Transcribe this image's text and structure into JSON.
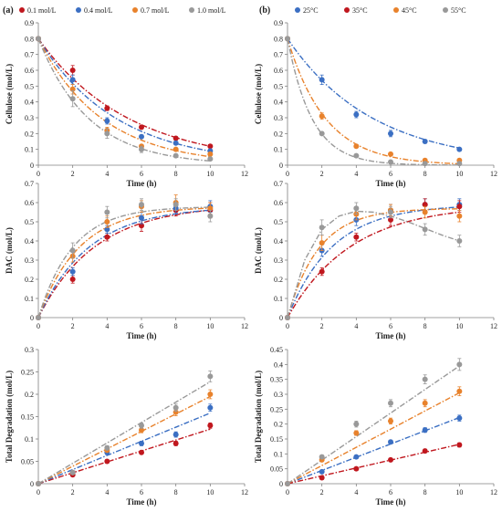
{
  "panel_labels": [
    "(a)",
    "(b)"
  ],
  "chart_data": [
    {
      "id": "a-cellulose",
      "type": "scatter",
      "xlabel": "Time (h)",
      "ylabel": "Cellulose (mol/L)",
      "xlim": [
        0,
        12
      ],
      "ylim": [
        0,
        0.9
      ],
      "xticks": [
        0,
        2,
        4,
        6,
        8,
        10,
        12
      ],
      "yticks": [
        0,
        0.1,
        0.2,
        0.3,
        0.4,
        0.5,
        0.6,
        0.7,
        0.8,
        0.9
      ],
      "grid": false,
      "legend": [
        "0.1 mol/L",
        "0.4 mol/L",
        "0.7 mol/L",
        "1.0 mol/L"
      ],
      "legend_position": "top",
      "series": [
        {
          "name": "0.1 mol/L",
          "color": "#c0171e",
          "x": [
            0,
            2,
            4,
            6,
            8,
            10
          ],
          "y": [
            0.8,
            0.6,
            0.36,
            0.24,
            0.17,
            0.12
          ],
          "err": [
            0,
            0.03,
            0.015,
            0.01,
            0.01,
            0.01
          ],
          "fit": {
            "y0": 0.8,
            "k": 0.19
          }
        },
        {
          "name": "0.4 mol/L",
          "color": "#3b6fc3",
          "x": [
            0,
            2,
            4,
            6,
            8,
            10
          ],
          "y": [
            0.8,
            0.54,
            0.28,
            0.18,
            0.14,
            0.09
          ],
          "err": [
            0,
            0.03,
            0.02,
            0.01,
            0.01,
            0.01
          ],
          "fit": {
            "y0": 0.8,
            "k": 0.22
          }
        },
        {
          "name": "0.7 mol/L",
          "color": "#e8822c",
          "x": [
            0,
            2,
            4,
            6,
            8,
            10
          ],
          "y": [
            0.8,
            0.48,
            0.22,
            0.12,
            0.1,
            0.07
          ],
          "err": [
            0,
            0.03,
            0.02,
            0.01,
            0.01,
            0.01
          ],
          "fit": {
            "y0": 0.8,
            "k": 0.27
          }
        },
        {
          "name": "1.0 mol/L",
          "color": "#999999",
          "x": [
            0,
            2,
            4,
            6,
            8,
            10
          ],
          "y": [
            0.8,
            0.42,
            0.2,
            0.1,
            0.06,
            0.04
          ],
          "err": [
            0,
            0.05,
            0.03,
            0.02,
            0.01,
            0.01
          ],
          "fit": {
            "y0": 0.8,
            "k": 0.34
          }
        }
      ]
    },
    {
      "id": "b-cellulose",
      "type": "scatter",
      "xlabel": "Time (h)",
      "ylabel": "Cellulose (mol/L)",
      "xlim": [
        0,
        12
      ],
      "ylim": [
        0,
        0.9
      ],
      "xticks": [
        0,
        2,
        4,
        6,
        8,
        10,
        12
      ],
      "yticks": [
        0,
        0.1,
        0.2,
        0.3,
        0.4,
        0.5,
        0.6,
        0.7,
        0.8,
        0.9
      ],
      "grid": false,
      "legend": [
        "25°C",
        "35°C",
        "45°C",
        "55°C"
      ],
      "legend_position": "top",
      "series": [
        {
          "name": "25°C",
          "color": "#3b6fc3",
          "x": [
            0,
            2,
            4,
            6,
            8,
            10
          ],
          "y": [
            0.8,
            0.54,
            0.32,
            0.2,
            0.15,
            0.1
          ],
          "err": [
            0,
            0.03,
            0.02,
            0.02,
            0.01,
            0.01
          ],
          "fit": {
            "y0": 0.8,
            "k": 0.2
          }
        },
        {
          "name": "35°C",
          "color": "#c0171e",
          "x": [],
          "y": [],
          "err": [],
          "fit": null
        },
        {
          "name": "45°C",
          "color": "#e8822c",
          "x": [
            0,
            2,
            4,
            6,
            8,
            10
          ],
          "y": [
            0.8,
            0.31,
            0.12,
            0.07,
            0.03,
            0.03
          ],
          "err": [
            0,
            0.02,
            0.01,
            0.01,
            0.01,
            0.01
          ],
          "fit": {
            "y0": 0.8,
            "k": 0.45
          }
        },
        {
          "name": "55°C",
          "color": "#999999",
          "x": [
            0,
            2,
            4,
            6,
            8,
            10
          ],
          "y": [
            0.8,
            0.2,
            0.06,
            0.02,
            0.01,
            0.01
          ],
          "err": [
            0,
            0.01,
            0.01,
            0.01,
            0.01,
            0.01
          ],
          "fit": {
            "y0": 0.8,
            "k": 0.7
          }
        }
      ]
    },
    {
      "id": "a-dac",
      "type": "scatter",
      "xlabel": "Time (h)",
      "ylabel": "DAC (mol/L)",
      "xlim": [
        0,
        12
      ],
      "ylim": [
        0,
        0.7
      ],
      "xticks": [
        0,
        2,
        4,
        6,
        8,
        10,
        12
      ],
      "yticks": [
        0,
        0.1,
        0.2,
        0.3,
        0.4,
        0.5,
        0.6,
        0.7
      ],
      "grid": false,
      "series": [
        {
          "name": "0.1 mol/L",
          "color": "#c0171e",
          "x": [
            0,
            2,
            4,
            6,
            8,
            10
          ],
          "y": [
            0,
            0.2,
            0.42,
            0.48,
            0.56,
            0.56
          ],
          "err": [
            0,
            0.02,
            0.02,
            0.03,
            0.03,
            0.04
          ],
          "fit": {
            "ymax": 0.59,
            "k": 0.3
          }
        },
        {
          "name": "0.4 mol/L",
          "color": "#3b6fc3",
          "x": [
            0,
            2,
            4,
            6,
            8,
            10
          ],
          "y": [
            0,
            0.24,
            0.46,
            0.52,
            0.57,
            0.58
          ],
          "err": [
            0,
            0.02,
            0.02,
            0.03,
            0.03,
            0.03
          ],
          "fit": {
            "ymax": 0.58,
            "k": 0.34
          }
        },
        {
          "name": "0.7 mol/L",
          "color": "#e8822c",
          "x": [
            0,
            2,
            4,
            6,
            8,
            10
          ],
          "y": [
            0,
            0.32,
            0.5,
            0.58,
            0.6,
            0.57
          ],
          "err": [
            0,
            0.03,
            0.03,
            0.03,
            0.04,
            0.03
          ],
          "fit": {
            "ymax": 0.58,
            "k": 0.42
          }
        },
        {
          "name": "1.0 mol/L",
          "color": "#999999",
          "x": [
            0,
            2,
            4,
            6,
            8,
            10
          ],
          "y": [
            0,
            0.35,
            0.55,
            0.59,
            0.59,
            0.53
          ],
          "err": [
            0,
            0.04,
            0.03,
            0.03,
            0.03,
            0.03
          ],
          "fit": {
            "ymax": 0.58,
            "k": 0.5
          }
        }
      ]
    },
    {
      "id": "b-dac",
      "type": "scatter",
      "xlabel": "Time (h)",
      "ylabel": "DAC (mol/L)",
      "xlim": [
        0,
        12
      ],
      "ylim": [
        0,
        0.7
      ],
      "xticks": [
        0,
        2,
        4,
        6,
        8,
        10,
        12
      ],
      "yticks": [
        0,
        0.1,
        0.2,
        0.3,
        0.4,
        0.5,
        0.6,
        0.7
      ],
      "grid": false,
      "series": [
        {
          "name": "25°C",
          "color": "#3b6fc3",
          "x": [
            0,
            2,
            4,
            6,
            8,
            10
          ],
          "y": [
            0,
            0.35,
            0.51,
            0.56,
            0.59,
            0.59
          ],
          "err": [
            0,
            0.03,
            0.03,
            0.03,
            0.03,
            0.03
          ],
          "fit": {
            "ymax": 0.59,
            "k": 0.38
          }
        },
        {
          "name": "35°C",
          "color": "#c0171e",
          "x": [
            0,
            2,
            4,
            6,
            8,
            10
          ],
          "y": [
            0,
            0.24,
            0.42,
            0.51,
            0.59,
            0.58
          ],
          "err": [
            0,
            0.02,
            0.02,
            0.03,
            0.03,
            0.03
          ],
          "fit": {
            "ymax": 0.59,
            "k": 0.27
          }
        },
        {
          "name": "45°C",
          "color": "#e8822c",
          "x": [
            0,
            2,
            4,
            6,
            8,
            10
          ],
          "y": [
            0,
            0.39,
            0.54,
            0.56,
            0.55,
            0.53
          ],
          "err": [
            0,
            0.04,
            0.03,
            0.03,
            0.03,
            0.03
          ],
          "fit": {
            "ymax": 0.57,
            "k": 0.55
          }
        },
        {
          "name": "55°C",
          "color": "#999999",
          "x": [
            0,
            2,
            4,
            6,
            8,
            10
          ],
          "y": [
            0,
            0.47,
            0.57,
            0.55,
            0.46,
            0.4
          ],
          "err": [
            0,
            0.04,
            0.03,
            0.03,
            0.03,
            0.03
          ],
          "fit": {
            "curve": [
              [
                0,
                0
              ],
              [
                1,
                0.3
              ],
              [
                2,
                0.46
              ],
              [
                3,
                0.53
              ],
              [
                4,
                0.555
              ],
              [
                5,
                0.55
              ],
              [
                6,
                0.53
              ],
              [
                7,
                0.5
              ],
              [
                8,
                0.465
              ],
              [
                9,
                0.43
              ],
              [
                10,
                0.4
              ]
            ]
          }
        }
      ]
    },
    {
      "id": "a-degradation",
      "type": "scatter",
      "xlabel": "Time (h)",
      "ylabel": "Total Degradation (mol/L)",
      "xlim": [
        0,
        12
      ],
      "ylim": [
        0,
        0.3
      ],
      "xticks": [
        0,
        2,
        4,
        6,
        8,
        10,
        12
      ],
      "yticks": [
        0,
        0.05,
        0.1,
        0.15,
        0.2,
        0.25,
        0.3
      ],
      "grid": false,
      "series": [
        {
          "name": "0.1 mol/L",
          "color": "#c0171e",
          "x": [
            0,
            2,
            4,
            6,
            8,
            10
          ],
          "y": [
            0,
            0.02,
            0.05,
            0.07,
            0.09,
            0.13
          ],
          "err": [
            0,
            0.003,
            0.004,
            0.004,
            0.005,
            0.006
          ],
          "fit": {
            "slope": 0.0122
          }
        },
        {
          "name": "0.4 mol/L",
          "color": "#3b6fc3",
          "x": [
            0,
            2,
            4,
            6,
            8,
            10
          ],
          "y": [
            0,
            0.025,
            0.07,
            0.09,
            0.11,
            0.17
          ],
          "err": [
            0,
            0.003,
            0.005,
            0.005,
            0.006,
            0.008
          ],
          "fit": {
            "slope": 0.0158
          }
        },
        {
          "name": "0.7 mol/L",
          "color": "#e8822c",
          "x": [
            0,
            2,
            4,
            6,
            8,
            10
          ],
          "y": [
            0,
            0.025,
            0.075,
            0.12,
            0.16,
            0.2
          ],
          "err": [
            0,
            0.003,
            0.005,
            0.006,
            0.008,
            0.01
          ],
          "fit": {
            "slope": 0.0195
          }
        },
        {
          "name": "1.0 mol/L",
          "color": "#999999",
          "x": [
            0,
            2,
            4,
            6,
            8,
            10
          ],
          "y": [
            0,
            0.025,
            0.08,
            0.13,
            0.17,
            0.24
          ],
          "err": [
            0,
            0.003,
            0.005,
            0.006,
            0.008,
            0.012
          ],
          "fit": {
            "slope": 0.0228
          }
        }
      ]
    },
    {
      "id": "b-degradation",
      "type": "scatter",
      "xlabel": "Time (h)",
      "ylabel": "Total Degradation (mol/L)",
      "xlim": [
        0,
        12
      ],
      "ylim": [
        0,
        0.45
      ],
      "xticks": [
        0,
        2,
        4,
        6,
        8,
        10,
        12
      ],
      "yticks": [
        0,
        0.05,
        0.1,
        0.15,
        0.2,
        0.25,
        0.3,
        0.35,
        0.4,
        0.45
      ],
      "grid": false,
      "series": [
        {
          "name": "25°C",
          "color": "#3b6fc3",
          "x": [
            0,
            2,
            4,
            6,
            8,
            10
          ],
          "y": [
            0,
            0.04,
            0.09,
            0.14,
            0.18,
            0.22
          ],
          "err": [
            0,
            0.004,
            0.005,
            0.006,
            0.008,
            0.01
          ],
          "fit": {
            "slope": 0.0222
          }
        },
        {
          "name": "35°C",
          "color": "#c0171e",
          "x": [
            0,
            2,
            4,
            6,
            8,
            10
          ],
          "y": [
            0,
            0.02,
            0.05,
            0.08,
            0.11,
            0.13
          ],
          "err": [
            0,
            0.003,
            0.004,
            0.005,
            0.006,
            0.007
          ],
          "fit": {
            "slope": 0.0132
          }
        },
        {
          "name": "45°C",
          "color": "#e8822c",
          "x": [
            0,
            2,
            4,
            6,
            8,
            10
          ],
          "y": [
            0,
            0.08,
            0.17,
            0.21,
            0.27,
            0.31
          ],
          "err": [
            0,
            0.005,
            0.008,
            0.01,
            0.012,
            0.015
          ],
          "fit": {
            "slope": 0.0305
          }
        },
        {
          "name": "55°C",
          "color": "#999999",
          "x": [
            0,
            2,
            4,
            6,
            8,
            10
          ],
          "y": [
            0,
            0.09,
            0.2,
            0.27,
            0.35,
            0.4
          ],
          "err": [
            0,
            0.006,
            0.01,
            0.012,
            0.015,
            0.02
          ],
          "fit": {
            "slope": 0.0395
          }
        }
      ]
    }
  ]
}
